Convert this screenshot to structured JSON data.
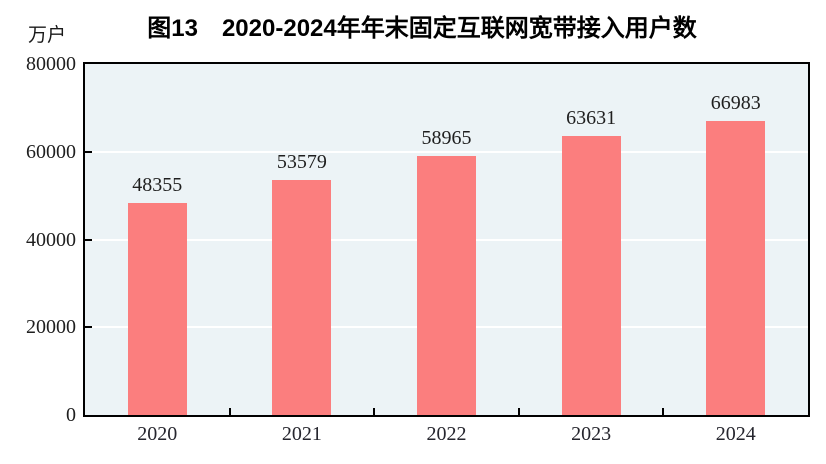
{
  "figure": {
    "title": "图13　2020-2024年年末固定互联网宽带接入用户数",
    "unit_label": "万户"
  },
  "chart_data": {
    "type": "bar",
    "title": "图13　2020-2024年年末固定互联网宽带接入用户数",
    "ylabel": "万户",
    "xlabel": "",
    "categories": [
      "2020",
      "2021",
      "2022",
      "2023",
      "2024"
    ],
    "values": [
      48355,
      53579,
      58965,
      63631,
      66983
    ],
    "value_labels": [
      "48355",
      "53579",
      "58965",
      "63631",
      "66983"
    ],
    "ylim": [
      0,
      80000
    ],
    "yticks": [
      0,
      20000,
      40000,
      60000,
      80000
    ],
    "ytick_labels": [
      "0",
      "20000",
      "40000",
      "60000",
      "80000"
    ],
    "grid": "horizontal",
    "legend": "none",
    "colors": {
      "bar": "#fb7e7e",
      "plot_background": "#ecf3f6",
      "gridline": "#ffffff",
      "axis": "#000000",
      "title_text": "#000000",
      "tick_text": "#1f1f1f"
    }
  }
}
